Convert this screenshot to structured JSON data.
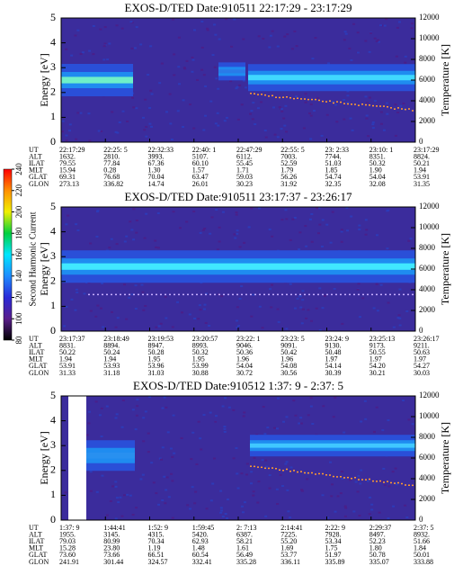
{
  "chart_data": [
    {
      "type": "spectrogram",
      "title": "EXOS-D/TED   Date:910511  22:17:29 - 23:17:29",
      "ylabel": "Energy [eV]",
      "y2label": "Temperature [K]",
      "ylim": [
        0,
        5
      ],
      "yticks": [
        0,
        1,
        2,
        3,
        4,
        5
      ],
      "y2lim": [
        0,
        12000
      ],
      "y2ticks": [
        0,
        2000,
        4000,
        6000,
        8000,
        10000,
        12000
      ],
      "x_label": "UT",
      "categories": [
        "22:17:29",
        "22:25: 5",
        "22:32:33",
        "22:40: 1",
        "22:47:29",
        "22:55: 5",
        "23: 2:33",
        "23:10: 1",
        "23:17:29"
      ],
      "ephemeris": [
        {
          "label": "ALT",
          "values": [
            "1632.",
            "2810.",
            "3993.",
            "5107.",
            "6112.",
            "7003.",
            "7744.",
            "8351.",
            "8824."
          ]
        },
        {
          "label": "ILAT",
          "values": [
            "79.55",
            "77.84",
            "67.36",
            "60.10",
            "55.45",
            "52.59",
            "51.03",
            "50.32",
            "50.21"
          ]
        },
        {
          "label": "MLT",
          "values": [
            "15.94",
            "0.28",
            "1.30",
            "1.57",
            "1.71",
            "1.79",
            "1.85",
            "1.90",
            "1.94"
          ]
        },
        {
          "label": "GLAT",
          "values": [
            "69.31",
            "76.68",
            "70.04",
            "63.47",
            "59.03",
            "56.26",
            "54.74",
            "54.04",
            "53.91"
          ]
        },
        {
          "label": "GLON",
          "values": [
            "273.13",
            "336.82",
            "14.74",
            "26.01",
            "30.23",
            "31.92",
            "32.35",
            "32.08",
            "31.35"
          ]
        }
      ]
    },
    {
      "type": "spectrogram",
      "title": "EXOS-D/TED   Date:910511  23:17:37 - 23:26:17",
      "ylabel": "Energy [eV]",
      "y2label": "Temperature [K]",
      "ylim": [
        0,
        5
      ],
      "yticks": [
        0,
        1,
        2,
        3,
        4,
        5
      ],
      "y2lim": [
        0,
        12000
      ],
      "y2ticks": [
        0,
        2000,
        4000,
        6000,
        8000,
        10000,
        12000
      ],
      "x_label": "UT",
      "categories": [
        "23:17:37",
        "23:18:49",
        "23:19:53",
        "23:20:57",
        "23:22: 1",
        "23:23: 5",
        "23:24: 9",
        "23:25:13",
        "23:26:17"
      ],
      "ephemeris": [
        {
          "label": "ALT",
          "values": [
            "8831.",
            "8894.",
            "8947.",
            "8993.",
            "9046.",
            "9091.",
            "9130.",
            "9173.",
            "9211."
          ]
        },
        {
          "label": "ILAT",
          "values": [
            "50.22",
            "50.24",
            "50.28",
            "50.32",
            "50.36",
            "50.42",
            "50.48",
            "50.55",
            "50.63"
          ]
        },
        {
          "label": "MLT",
          "values": [
            "1.94",
            "1.94",
            "1.95",
            "1.95",
            "1.96",
            "1.96",
            "1.97",
            "1.97",
            "1.97"
          ]
        },
        {
          "label": "GLAT",
          "values": [
            "53.91",
            "53.93",
            "53.96",
            "53.99",
            "54.04",
            "54.08",
            "54.14",
            "54.20",
            "54.27"
          ]
        },
        {
          "label": "GLON",
          "values": [
            "31.33",
            "31.18",
            "31.03",
            "30.88",
            "30.72",
            "30.56",
            "30.39",
            "30.21",
            "30.03"
          ]
        }
      ]
    },
    {
      "type": "spectrogram",
      "title": "EXOS-D/TED   Date:910512   1:37: 9 -  2:37: 5",
      "ylabel": "Energy [eV]",
      "y2label": "Temperature [K]",
      "ylim": [
        0,
        5
      ],
      "yticks": [
        0,
        1,
        2,
        3,
        4,
        5
      ],
      "y2lim": [
        0,
        12000
      ],
      "y2ticks": [
        0,
        2000,
        4000,
        6000,
        8000,
        10000,
        12000
      ],
      "x_label": "UT",
      "categories": [
        "1:37: 9",
        "1:44:41",
        "1:52: 9",
        "1:59:45",
        "2: 7:13",
        "2:14:41",
        "2:22: 9",
        "2:29:37",
        "2:37: 5"
      ],
      "ephemeris": [
        {
          "label": "ALT",
          "values": [
            "1955.",
            "3145.",
            "4315.",
            "5420.",
            "6387.",
            "7225.",
            "7928.",
            "8497.",
            "8932."
          ]
        },
        {
          "label": "ILAT",
          "values": [
            "79.03",
            "80.99",
            "70.34",
            "62.93",
            "58.21",
            "55.20",
            "53.34",
            "52.23",
            "51.66"
          ]
        },
        {
          "label": "MLT",
          "values": [
            "15.28",
            "23.80",
            "1.19",
            "1.48",
            "1.61",
            "1.69",
            "1.75",
            "1.80",
            "1.84"
          ]
        },
        {
          "label": "GLAT",
          "values": [
            "73.60",
            "73.66",
            "66.51",
            "60.54",
            "56.49",
            "53.77",
            "51.97",
            "50.78",
            "50.01"
          ]
        },
        {
          "label": "GLON",
          "values": [
            "241.91",
            "301.44",
            "324.57",
            "332.41",
            "335.28",
            "336.11",
            "335.89",
            "335.07",
            "333.88"
          ]
        }
      ]
    }
  ],
  "colorbar": {
    "label": "Second Harmonic Current",
    "lim": [
      80,
      240
    ],
    "ticks": [
      80,
      100,
      120,
      140,
      160,
      180,
      200,
      220,
      240
    ],
    "colors": [
      "#000000",
      "#5a1e8c",
      "#2a2ad8",
      "#1e8cff",
      "#00e6ff",
      "#00d040",
      "#f0f000",
      "#ff9000",
      "#ff0000"
    ]
  }
}
